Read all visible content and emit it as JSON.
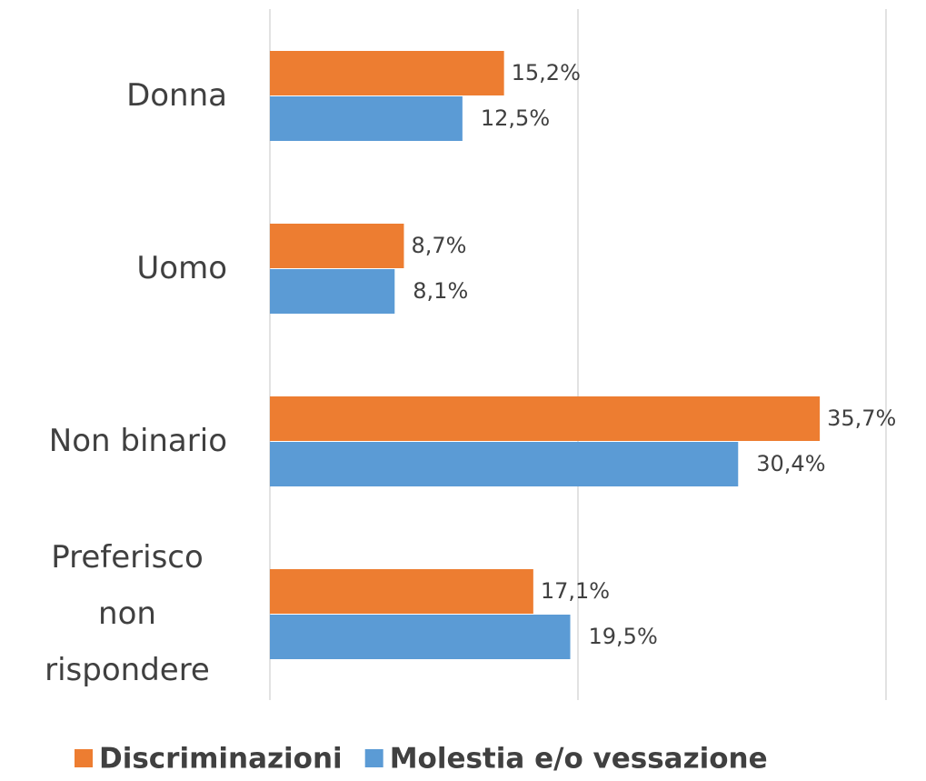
{
  "chart_data": {
    "type": "barh",
    "categories": [
      "Donna",
      "Uomo",
      "Non binario",
      "Preferisco non rispondere"
    ],
    "series": [
      {
        "name": "Discriminazioni",
        "color": "#ED7D31",
        "values": [
          15.2,
          8.7,
          35.7,
          17.1
        ],
        "value_labels": [
          "15,2%",
          "8,7%",
          "35,7%",
          "17,1%"
        ]
      },
      {
        "name": "Molestia e/o vessazione",
        "color": "#5B9BD5",
        "values": [
          12.5,
          8.1,
          30.4,
          19.5
        ],
        "value_labels": [
          "12,5%",
          "8,1%",
          "30,4%",
          "19,5%"
        ]
      }
    ],
    "xlim": [
      0,
      40
    ],
    "xticks": [
      0,
      20,
      40
    ],
    "grid": true,
    "legend": "bottom"
  }
}
